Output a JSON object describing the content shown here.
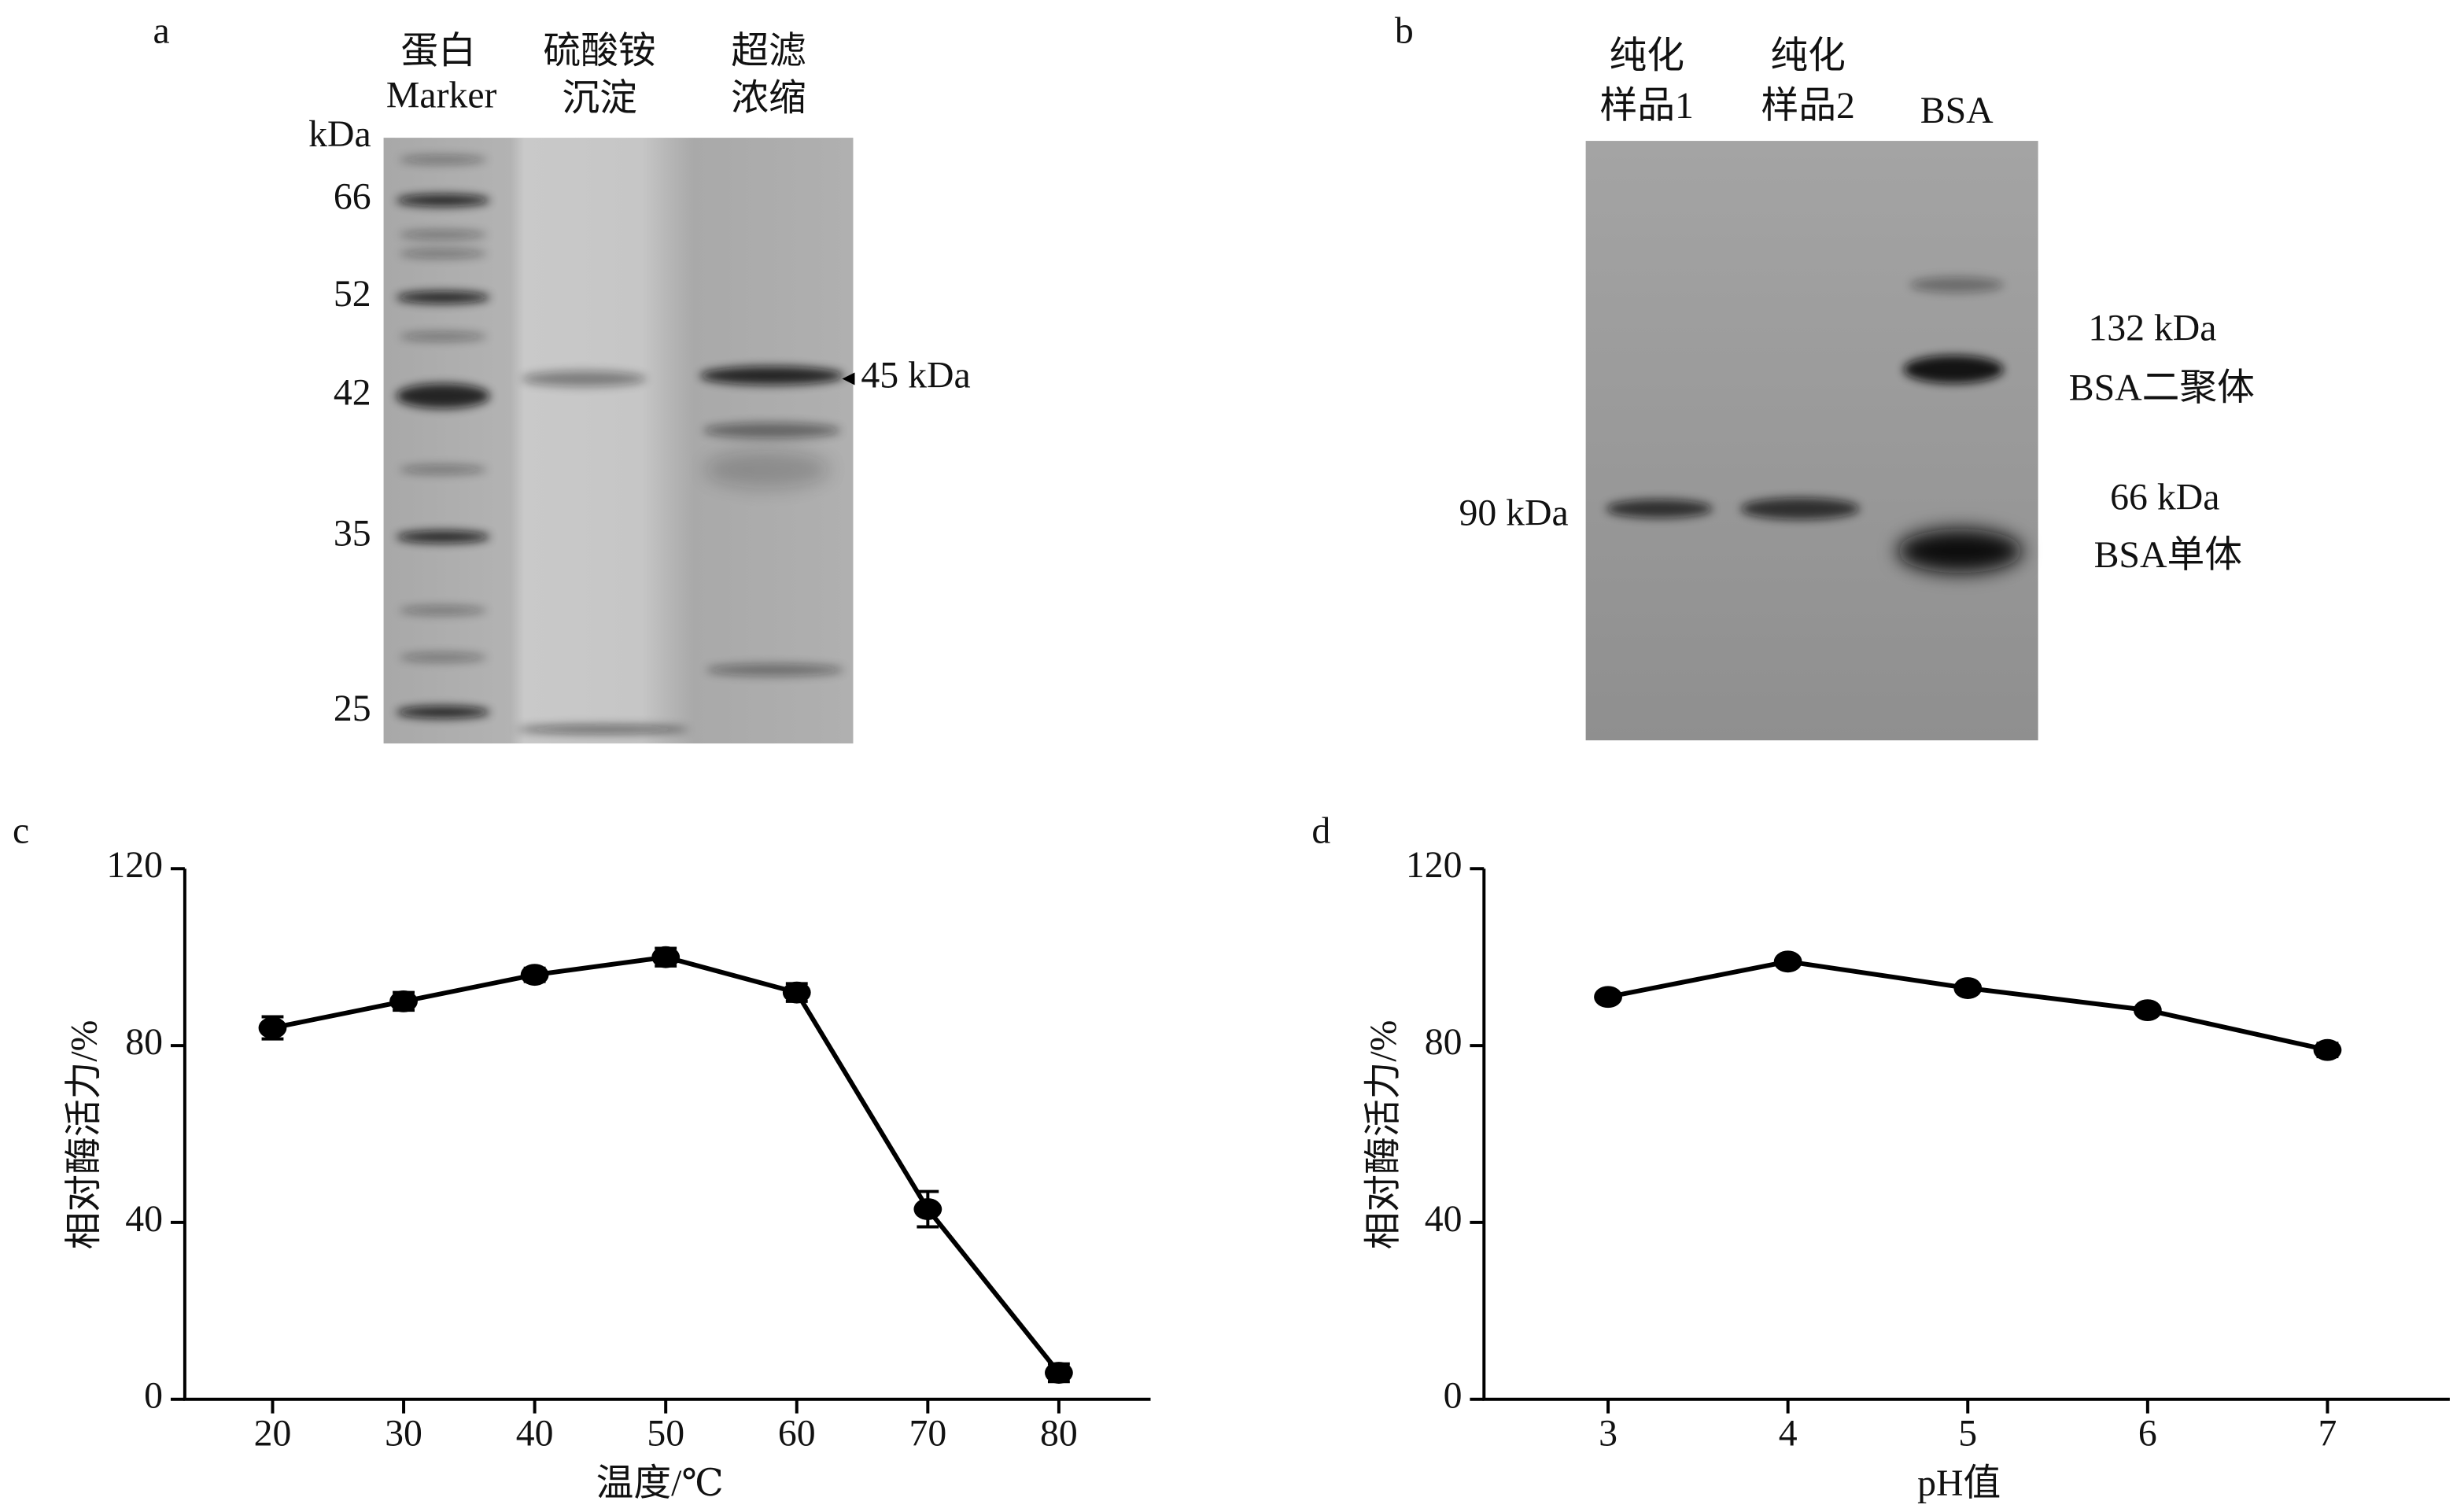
{
  "panel_a": {
    "label": "a",
    "lanes": [
      [
        "蛋白",
        "Marker"
      ],
      [
        "硫酸铵",
        "沉淀"
      ],
      [
        "超滤",
        "浓缩"
      ]
    ],
    "unit": "kDa",
    "markers": [
      66,
      52,
      42,
      35,
      25
    ],
    "annotation": "45 kDa"
  },
  "panel_b": {
    "label": "b",
    "lanes": [
      [
        "纯化",
        "样品1"
      ],
      [
        "纯化",
        "样品2"
      ],
      [
        "BSA"
      ]
    ],
    "annotations": [
      "90 kDa",
      "132 kDa",
      "BSA二聚体",
      "66 kDa",
      "BSA单体"
    ]
  },
  "chart_data": [
    {
      "type": "line",
      "panel": "c",
      "x": [
        20,
        30,
        40,
        50,
        60,
        70,
        80
      ],
      "values": [
        84,
        90,
        96,
        100,
        92,
        43,
        6
      ],
      "errors": [
        2.5,
        2,
        1.5,
        2,
        2,
        4,
        2
      ],
      "color": "#000000",
      "xlim": [
        13.3,
        87
      ],
      "ylim": [
        0,
        120
      ],
      "xticks": [
        20,
        30,
        40,
        50,
        60,
        70,
        80
      ],
      "yticks": [
        0,
        40,
        80,
        120
      ],
      "xlabel": "温度/℃",
      "ylabel": "相对酶活力/%"
    },
    {
      "type": "line",
      "panel": "d",
      "x": [
        3,
        4,
        5,
        6,
        7
      ],
      "values": [
        91,
        99,
        93,
        88,
        79
      ],
      "errors": [
        1,
        1,
        1,
        1,
        1.5
      ],
      "color": "#000000",
      "xlim": [
        2.31,
        7.68
      ],
      "ylim": [
        0,
        120
      ],
      "xticks": [
        3,
        4,
        5,
        6,
        7
      ],
      "yticks": [
        0,
        40,
        80,
        120
      ],
      "xlabel": "pH值",
      "ylabel": "相对酶活力/%"
    }
  ]
}
